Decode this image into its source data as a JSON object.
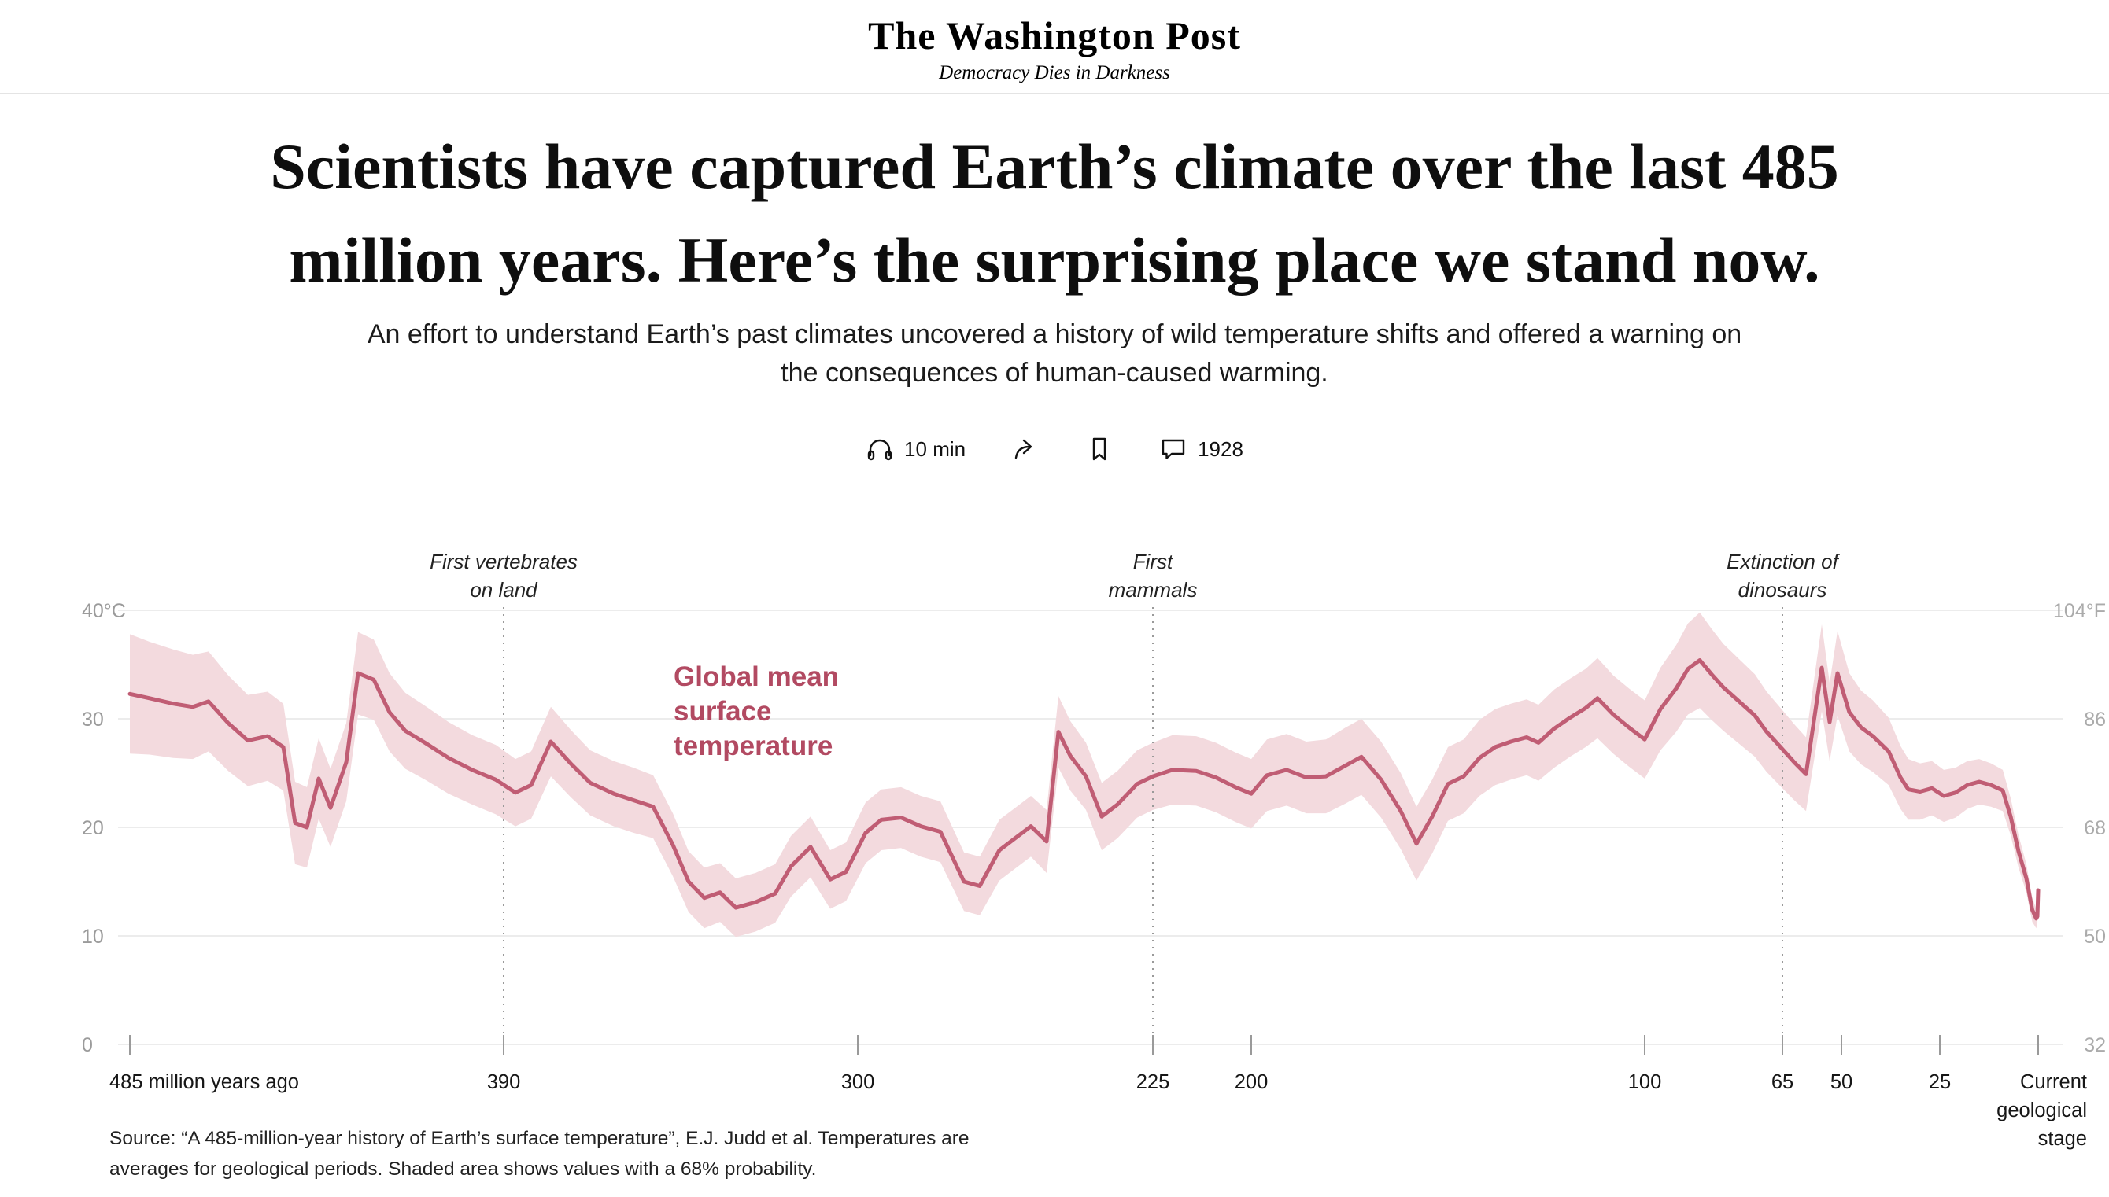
{
  "masthead": {
    "title": "The Washington Post",
    "tagline": "Democracy Dies in Darkness"
  },
  "article": {
    "headline": "Scientists have captured Earth’s climate over the last 485 million years. Here’s the surprising place we stand now.",
    "headline_lines": [
      "Scientists have captured Earth’s climate over the last 485",
      "million years. Here’s the surprising place we stand now."
    ],
    "subhead": "An effort to understand Earth’s past climates uncovered a history of wild temperature shifts and offered a warning on the consequences of human-caused warming.",
    "subhead_lines": [
      "An effort to understand Earth’s past climates uncovered a history of wild temperature shifts and offered a warning on",
      "the consequences of human-caused warming."
    ],
    "meta": {
      "listen_label": "10 min",
      "comments_count": "1928"
    },
    "source_note": "Source: “A 485-million-year history of Earth’s surface temperature”, E.J. Judd et al. Temperatures are averages for geological periods. Shaded area shows values with a 68% probability.",
    "source_lines": [
      "Source: “A 485-million-year history of Earth’s surface temperature”, E.J. Judd et al. Temperatures are",
      "averages for geological periods. Shaded area shows values with a 68% probability."
    ]
  },
  "chart_data": {
    "type": "line",
    "title": "Global mean surface temperature",
    "title_lines": [
      "Global mean",
      "surface",
      "temperature"
    ],
    "x_unit": "millions of years ago",
    "x_range": [
      485,
      0
    ],
    "ylim_c": [
      0,
      40
    ],
    "ylim_f": [
      32,
      104
    ],
    "band_probability": "68%",
    "colors": {
      "line": "#c05d74",
      "band": "#f3dade",
      "label": "#b24a62",
      "grid": "#ececec",
      "dashed": "#9a9a9a",
      "axis_left": "#9b9b9b",
      "axis_right": "#ababab",
      "x_labels": "#161616"
    },
    "y_axis_left": [
      {
        "c": 40,
        "label": "40°C"
      },
      {
        "c": 30,
        "label": "30"
      },
      {
        "c": 20,
        "label": "20"
      },
      {
        "c": 10,
        "label": "10"
      },
      {
        "c": 0,
        "label": "0"
      }
    ],
    "y_axis_right": [
      {
        "c": 40,
        "label": "104°F"
      },
      {
        "c": 30,
        "label": "86"
      },
      {
        "c": 20,
        "label": "68"
      },
      {
        "c": 10,
        "label": "50"
      },
      {
        "c": 0,
        "label": "32"
      }
    ],
    "x_ticks": [
      {
        "t": 485,
        "label": "485 million years ago",
        "align": "left"
      },
      {
        "t": 390,
        "label": "390"
      },
      {
        "t": 300,
        "label": "300"
      },
      {
        "t": 225,
        "label": "225"
      },
      {
        "t": 200,
        "label": "200"
      },
      {
        "t": 100,
        "label": "100"
      },
      {
        "t": 65,
        "label": "65"
      },
      {
        "t": 50,
        "label": "50"
      },
      {
        "t": 25,
        "label": "25"
      },
      {
        "t": 0,
        "lines": [
          "Current",
          "geological",
          "stage"
        ],
        "align": "right"
      }
    ],
    "annotations": [
      {
        "t": 390,
        "lines": [
          "First vertebrates",
          "on land"
        ]
      },
      {
        "t": 225,
        "lines": [
          "First",
          "mammals"
        ]
      },
      {
        "t": 65,
        "lines": [
          "Extinction of",
          "dinosaurs"
        ]
      }
    ],
    "points_format": "[time_Ma, mean_temp_C, band_halfwidth_C]",
    "series": [
      {
        "name": "Global mean surface temperature",
        "points": [
          [
            485,
            32.3,
            5.5
          ],
          [
            480,
            31.9,
            5.2
          ],
          [
            474,
            31.4,
            5.0
          ],
          [
            469,
            31.1,
            4.8
          ],
          [
            465,
            31.6,
            4.6
          ],
          [
            460,
            29.6,
            4.4
          ],
          [
            455,
            28.0,
            4.2
          ],
          [
            450,
            28.4,
            4.1
          ],
          [
            446,
            27.4,
            4.0
          ],
          [
            443,
            20.4,
            3.8
          ],
          [
            440,
            20.0,
            3.7
          ],
          [
            437,
            24.5,
            3.7
          ],
          [
            434,
            21.8,
            3.6
          ],
          [
            430,
            26.0,
            3.6
          ],
          [
            427,
            34.2,
            3.8
          ],
          [
            423,
            33.6,
            3.7
          ],
          [
            419,
            30.6,
            3.6
          ],
          [
            415,
            28.9,
            3.5
          ],
          [
            410,
            27.8,
            3.4
          ],
          [
            404,
            26.4,
            3.3
          ],
          [
            398,
            25.3,
            3.2
          ],
          [
            392,
            24.4,
            3.2
          ],
          [
            387,
            23.2,
            3.1
          ],
          [
            383,
            23.9,
            3.1
          ],
          [
            378,
            27.9,
            3.2
          ],
          [
            373,
            25.9,
            3.1
          ],
          [
            368,
            24.1,
            3.0
          ],
          [
            362,
            23.1,
            3.0
          ],
          [
            357,
            22.5,
            3.0
          ],
          [
            352,
            21.9,
            2.9
          ],
          [
            347,
            18.4,
            2.9
          ],
          [
            343,
            15.0,
            2.8
          ],
          [
            339,
            13.5,
            2.8
          ],
          [
            335,
            14.0,
            2.7
          ],
          [
            331,
            12.6,
            2.7
          ],
          [
            326,
            13.1,
            2.7
          ],
          [
            321,
            13.9,
            2.7
          ],
          [
            317,
            16.4,
            2.8
          ],
          [
            312,
            18.2,
            2.8
          ],
          [
            307,
            15.2,
            2.7
          ],
          [
            303,
            15.9,
            2.7
          ],
          [
            298,
            19.5,
            2.8
          ],
          [
            294,
            20.7,
            2.8
          ],
          [
            289,
            20.9,
            2.8
          ],
          [
            284,
            20.1,
            2.8
          ],
          [
            279,
            19.6,
            2.8
          ],
          [
            273,
            15.0,
            2.7
          ],
          [
            269,
            14.6,
            2.7
          ],
          [
            264,
            17.9,
            2.8
          ],
          [
            260,
            19.0,
            2.8
          ],
          [
            256,
            20.1,
            2.8
          ],
          [
            252,
            18.7,
            2.9
          ],
          [
            249,
            28.8,
            3.3
          ],
          [
            246,
            26.6,
            3.2
          ],
          [
            242,
            24.7,
            3.1
          ],
          [
            238,
            21.0,
            3.1
          ],
          [
            234,
            22.1,
            3.1
          ],
          [
            229,
            24.0,
            3.1
          ],
          [
            225,
            24.7,
            3.1
          ],
          [
            220,
            25.3,
            3.2
          ],
          [
            214,
            25.2,
            3.2
          ],
          [
            209,
            24.6,
            3.2
          ],
          [
            204,
            23.7,
            3.2
          ],
          [
            200,
            23.1,
            3.2
          ],
          [
            196,
            24.8,
            3.3
          ],
          [
            191,
            25.3,
            3.3
          ],
          [
            186,
            24.6,
            3.3
          ],
          [
            181,
            24.7,
            3.4
          ],
          [
            176,
            25.7,
            3.5
          ],
          [
            172,
            26.5,
            3.5
          ],
          [
            167,
            24.4,
            3.5
          ],
          [
            162,
            21.5,
            3.5
          ],
          [
            158,
            18.5,
            3.4
          ],
          [
            154,
            21.0,
            3.4
          ],
          [
            150,
            24.0,
            3.4
          ],
          [
            146,
            24.7,
            3.4
          ],
          [
            142,
            26.4,
            3.5
          ],
          [
            138,
            27.4,
            3.5
          ],
          [
            134,
            27.9,
            3.5
          ],
          [
            130,
            28.3,
            3.5
          ],
          [
            127,
            27.8,
            3.5
          ],
          [
            123,
            29.1,
            3.6
          ],
          [
            119,
            30.1,
            3.6
          ],
          [
            115,
            31.0,
            3.6
          ],
          [
            112,
            31.9,
            3.7
          ],
          [
            108,
            30.4,
            3.6
          ],
          [
            104,
            29.2,
            3.6
          ],
          [
            100,
            28.1,
            3.6
          ],
          [
            96,
            30.9,
            3.8
          ],
          [
            92,
            32.8,
            4.0
          ],
          [
            89,
            34.6,
            4.2
          ],
          [
            86,
            35.4,
            4.4
          ],
          [
            83,
            34.1,
            4.2
          ],
          [
            80,
            32.9,
            4.0
          ],
          [
            76,
            31.6,
            3.9
          ],
          [
            72,
            30.3,
            3.8
          ],
          [
            69,
            28.8,
            3.7
          ],
          [
            65,
            27.2,
            3.6
          ],
          [
            62,
            26.0,
            3.5
          ],
          [
            59,
            24.9,
            3.4
          ],
          [
            55,
            34.7,
            4.0
          ],
          [
            53,
            29.7,
            3.6
          ],
          [
            51,
            34.2,
            3.9
          ],
          [
            48,
            30.6,
            3.6
          ],
          [
            45,
            29.2,
            3.4
          ],
          [
            42,
            28.4,
            3.3
          ],
          [
            38,
            27.0,
            3.1
          ],
          [
            35,
            24.6,
            2.9
          ],
          [
            33,
            23.5,
            2.8
          ],
          [
            30,
            23.3,
            2.6
          ],
          [
            27,
            23.6,
            2.5
          ],
          [
            24,
            22.9,
            2.4
          ],
          [
            21,
            23.2,
            2.3
          ],
          [
            18,
            23.9,
            2.2
          ],
          [
            15,
            24.2,
            2.1
          ],
          [
            12,
            23.9,
            2.0
          ],
          [
            9,
            23.4,
            1.9
          ],
          [
            7,
            21.0,
            1.7
          ],
          [
            5,
            17.8,
            1.5
          ],
          [
            3,
            15.3,
            1.3
          ],
          [
            1.5,
            12.4,
            1.1
          ],
          [
            0.5,
            11.6,
            0.9
          ],
          [
            0.2,
            11.8,
            0.7
          ],
          [
            0,
            14.2,
            0.6
          ]
        ]
      }
    ]
  }
}
